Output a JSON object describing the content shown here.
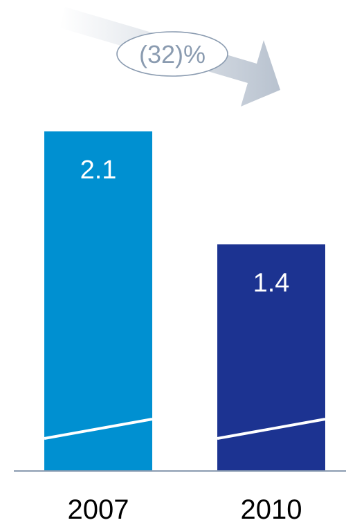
{
  "chart_data": {
    "type": "bar",
    "categories": [
      "2007",
      "2010"
    ],
    "values": [
      2.1,
      1.4
    ],
    "value_labels": [
      "2.1",
      "1.4"
    ],
    "colors": [
      "#0090D1",
      "#1C3391"
    ],
    "ylim": [
      0,
      2.1
    ],
    "axis_line_color": "#8A9BB0",
    "grid": false,
    "annotation": {
      "text": "(32)%",
      "arrow_direction": "down-right",
      "arrow_color": "#C4CDD8",
      "bubble_border_color": "#8A9BB0",
      "text_color": "#8A9BB0"
    }
  }
}
